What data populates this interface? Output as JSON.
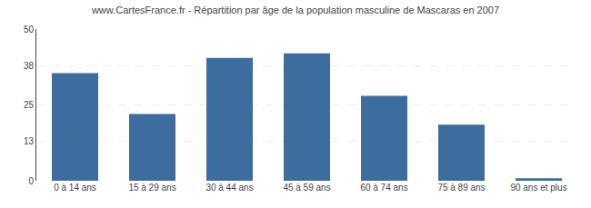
{
  "chart_data": {
    "type": "bar",
    "title": "www.CartesFrance.fr - Répartition par âge de la population masculine de Mascaras en 2007",
    "categories": [
      "0 à 14 ans",
      "15 à 29 ans",
      "30 à 44 ans",
      "45 à 59 ans",
      "60 à 74 ans",
      "75 à 89 ans",
      "90 ans et plus"
    ],
    "values": [
      35.5,
      22.0,
      40.5,
      42.0,
      28.0,
      18.5,
      0.8
    ],
    "color": "#3d6d9e",
    "ylim": [
      0,
      50
    ],
    "yticks": [
      0,
      13,
      25,
      38,
      50
    ],
    "grid": true
  }
}
